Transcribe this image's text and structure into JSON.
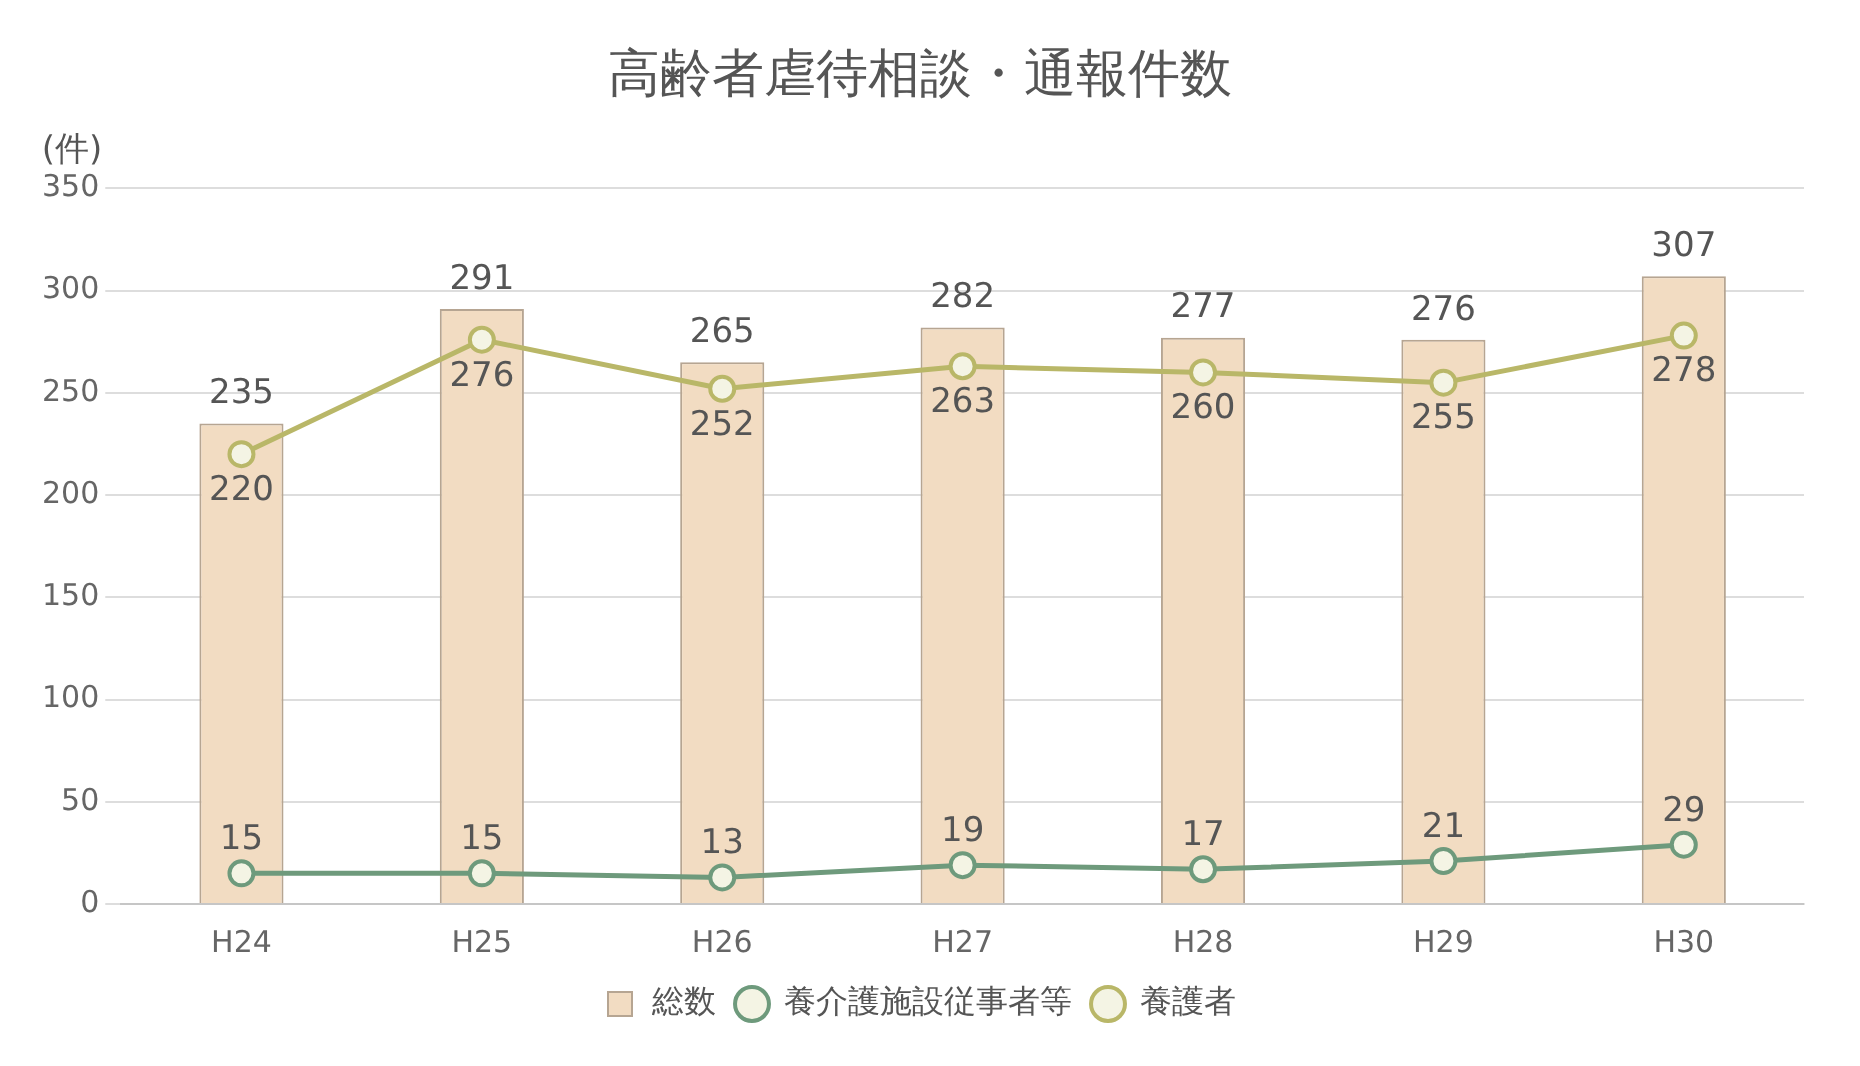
{
  "chart_data": {
    "type": "bar",
    "title": "高齢者虐待相談・通報件数",
    "ylabel": "(件)",
    "categories": [
      "H24",
      "H25",
      "H26",
      "H27",
      "H28",
      "H29",
      "H30"
    ],
    "series": [
      {
        "name": "総数",
        "color": "#f2dcc2",
        "values": [
          235,
          291,
          265,
          282,
          277,
          276,
          307
        ]
      },
      {
        "name": "養介護施設従事者等",
        "type": "line",
        "color": "#6e9a7c",
        "values": [
          15,
          15,
          13,
          19,
          17,
          21,
          29
        ]
      },
      {
        "name": "養護者",
        "type": "line",
        "color": "#b9b768",
        "values": [
          220,
          276,
          252,
          263,
          260,
          255,
          278
        ]
      }
    ],
    "ylim": [
      0,
      350
    ],
    "yticks": [
      0,
      50,
      100,
      150,
      200,
      250,
      300,
      350
    ],
    "grid": "y",
    "legend": "bottom",
    "marker": "circle",
    "data_labels": true
  }
}
